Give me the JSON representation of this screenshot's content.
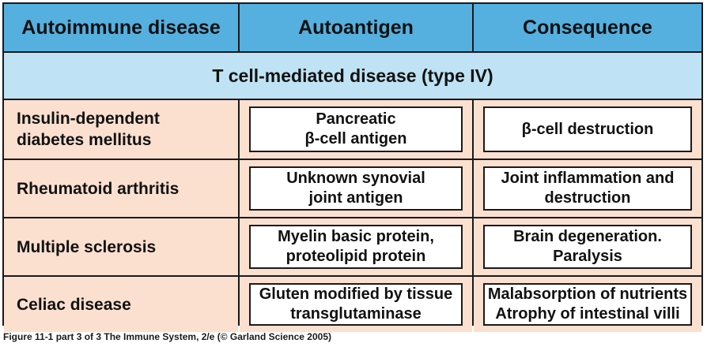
{
  "header": {
    "col1": "Autoimmune disease",
    "col2": "Autoantigen",
    "col3": "Consequence"
  },
  "section_title": "T cell-mediated disease (type IV)",
  "rows": [
    {
      "disease": "Insulin-dependent\ndiabetes mellitus",
      "autoantigen": "Pancreatic\nβ-cell antigen",
      "consequence": "β-cell destruction"
    },
    {
      "disease": "Rheumatoid arthritis",
      "autoantigen": "Unknown synovial\njoint antigen",
      "consequence": "Joint inflammation and\ndestruction"
    },
    {
      "disease": "Multiple sclerosis",
      "autoantigen": "Myelin basic protein,\nproteolipid protein",
      "consequence": "Brain degeneration.\nParalysis"
    },
    {
      "disease": "Celiac disease",
      "autoantigen": "Gluten modified by tissue\ntransglutaminase",
      "consequence": "Malabsorption of nutrients\nAtrophy of intestinal villi"
    }
  ],
  "caption": "Figure 11-1 part 3 of 3  The Immune System, 2/e (© Garland Science 2005)",
  "colors": {
    "header_bg": "#55b0e0",
    "section_bg": "#bfe3f4",
    "row_bg": "#fbe0d0",
    "border": "#1a1a1a"
  }
}
